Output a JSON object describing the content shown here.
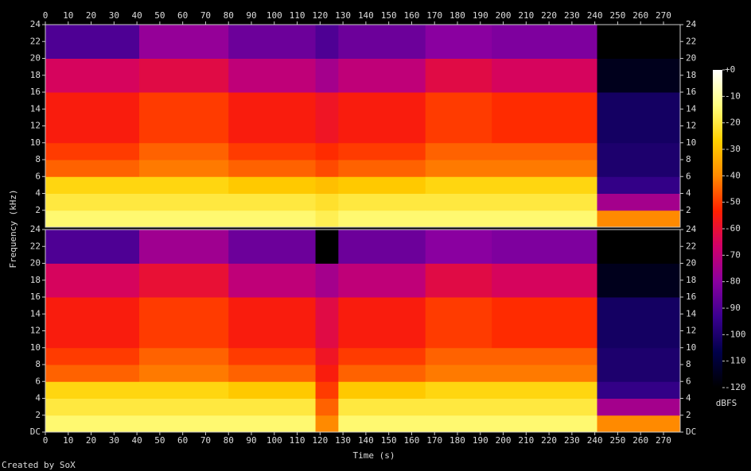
{
  "chart_data": {
    "type": "heatmap",
    "xlabel": "Time (s)",
    "ylabel": "Frequency (kHz)",
    "footer": "Created by SoX",
    "colorbar_label": "dBFS",
    "xlim": [
      0,
      277.3
    ],
    "xticks": [
      0,
      10,
      20,
      30,
      40,
      50,
      60,
      70,
      80,
      90,
      100,
      110,
      120,
      130,
      140,
      150,
      160,
      170,
      180,
      190,
      200,
      210,
      220,
      230,
      240,
      250,
      260,
      270
    ],
    "time_bins": [
      0,
      41,
      80,
      118,
      128,
      166,
      195,
      241,
      277.3
    ],
    "freq_bins": [
      0,
      2,
      4,
      6,
      8,
      10,
      16,
      20,
      24
    ],
    "zlim": [
      -120,
      0
    ],
    "zticks": [
      {
        "value": 0,
        "label": "+0"
      },
      -10,
      -20,
      -30,
      -40,
      -50,
      -60,
      -70,
      -80,
      -90,
      -100,
      -110,
      -120
    ],
    "colormap": [
      "#000000",
      "#00004a",
      "#3a0090",
      "#8a00a0",
      "#d0006a",
      "#ff2000",
      "#ff8a00",
      "#ffd000",
      "#ffff80",
      "#ffffff"
    ],
    "channels": [
      {
        "ylim": [
          0,
          24
        ],
        "yticks": [
          2,
          4,
          6,
          8,
          10,
          12,
          14,
          16,
          18,
          20,
          22,
          24
        ],
        "values": [
          [
            -15,
            -20,
            -25,
            -45,
            -50,
            -55,
            -65,
            -90
          ],
          [
            -15,
            -20,
            -25,
            -42,
            -45,
            -50,
            -62,
            -78
          ],
          [
            -15,
            -20,
            -28,
            -45,
            -50,
            -55,
            -70,
            -85
          ],
          [
            -18,
            -22,
            -30,
            -48,
            -52,
            -58,
            -75,
            -90
          ],
          [
            -15,
            -20,
            -28,
            -45,
            -50,
            -55,
            -70,
            -85
          ],
          [
            -15,
            -20,
            -25,
            -42,
            -45,
            -50,
            -62,
            -80
          ],
          [
            -15,
            -20,
            -25,
            -42,
            -45,
            -52,
            -65,
            -82
          ],
          [
            -40,
            -75,
            -95,
            -100,
            -100,
            -102,
            -115,
            -120
          ]
        ]
      },
      {
        "ylim": [
          0,
          24
        ],
        "yticks": [
          {
            "value": 0,
            "label": "DC"
          },
          2,
          4,
          6,
          8,
          10,
          12,
          14,
          16,
          18,
          20,
          22,
          24
        ],
        "values": [
          [
            -15,
            -20,
            -25,
            -45,
            -50,
            -55,
            -65,
            -90
          ],
          [
            -15,
            -20,
            -25,
            -42,
            -45,
            -50,
            -60,
            -76
          ],
          [
            -15,
            -20,
            -28,
            -45,
            -50,
            -55,
            -70,
            -85
          ],
          [
            -40,
            -45,
            -50,
            -55,
            -58,
            -62,
            -75,
            -120
          ],
          [
            -15,
            -20,
            -28,
            -45,
            -50,
            -55,
            -70,
            -85
          ],
          [
            -15,
            -20,
            -25,
            -42,
            -45,
            -50,
            -62,
            -80
          ],
          [
            -15,
            -20,
            -25,
            -42,
            -45,
            -52,
            -65,
            -82
          ],
          [
            -40,
            -75,
            -95,
            -100,
            -100,
            -102,
            -115,
            -120
          ]
        ]
      }
    ]
  }
}
